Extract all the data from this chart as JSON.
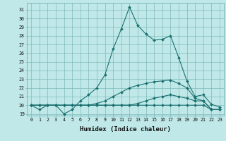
{
  "xlabel": "Humidex (Indice chaleur)",
  "background_color": "#c0e8e8",
  "grid_color": "#70b0b0",
  "line_color": "#1a7070",
  "xlim": [
    -0.5,
    23.5
  ],
  "ylim": [
    18.8,
    31.8
  ],
  "yticks": [
    19,
    20,
    21,
    22,
    23,
    24,
    25,
    26,
    27,
    28,
    29,
    30,
    31
  ],
  "xticks": [
    0,
    1,
    2,
    3,
    4,
    5,
    6,
    7,
    8,
    9,
    10,
    11,
    12,
    13,
    14,
    15,
    16,
    17,
    18,
    19,
    20,
    21,
    22,
    23
  ],
  "curve1": [
    20.0,
    19.5,
    20.0,
    20.0,
    19.0,
    19.5,
    20.5,
    21.2,
    22.0,
    23.5,
    26.5,
    28.8,
    31.3,
    29.2,
    28.2,
    27.5,
    27.6,
    28.0,
    25.5,
    22.8,
    21.0,
    21.2,
    20.1,
    19.8
  ],
  "curve2": [
    20.0,
    20.0,
    20.0,
    20.0,
    20.0,
    20.0,
    20.0,
    20.0,
    20.2,
    20.5,
    21.0,
    21.5,
    22.0,
    22.3,
    22.5,
    22.7,
    22.8,
    22.9,
    22.5,
    22.0,
    20.8,
    20.5,
    19.5,
    19.5
  ],
  "curve3": [
    20.0,
    20.0,
    20.0,
    20.0,
    20.0,
    20.0,
    20.0,
    20.0,
    20.0,
    20.0,
    20.0,
    20.0,
    20.0,
    20.2,
    20.5,
    20.8,
    21.0,
    21.2,
    21.0,
    20.8,
    20.5,
    20.5,
    19.5,
    19.5
  ],
  "curve4": [
    20.0,
    20.0,
    20.0,
    20.0,
    20.0,
    20.0,
    20.0,
    20.0,
    20.0,
    20.0,
    20.0,
    20.0,
    20.0,
    20.0,
    20.0,
    20.0,
    20.0,
    20.0,
    20.0,
    20.0,
    20.0,
    20.0,
    19.5,
    19.5
  ]
}
